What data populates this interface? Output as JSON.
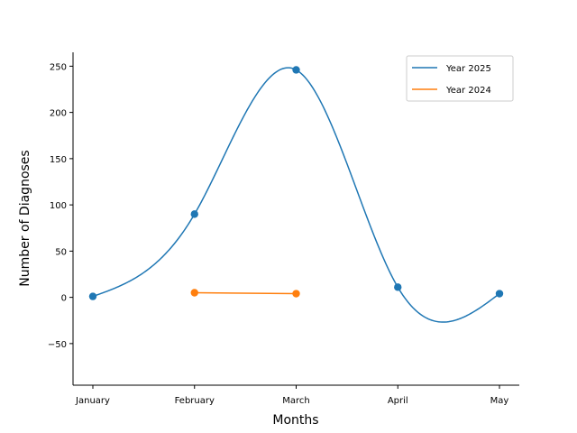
{
  "chart_data": {
    "type": "line",
    "title": "",
    "xlabel": "Months",
    "ylabel": "Number of Diagnoses",
    "categories": [
      "January",
      "February",
      "March",
      "April",
      "May"
    ],
    "ylim": [
      -95,
      265
    ],
    "yticks": [
      -50,
      0,
      50,
      100,
      150,
      200,
      250
    ],
    "grid": false,
    "legend_position": "top-right",
    "series": [
      {
        "name": "Year 2025",
        "color": "#1f77b4",
        "smooth": true,
        "x": [
          "January",
          "February",
          "March",
          "April",
          "May"
        ],
        "values": [
          1,
          90,
          246,
          11,
          4
        ]
      },
      {
        "name": "Year 2024",
        "color": "#ff7f0e",
        "smooth": false,
        "x": [
          "February",
          "March"
        ],
        "values": [
          5,
          4
        ]
      }
    ]
  }
}
